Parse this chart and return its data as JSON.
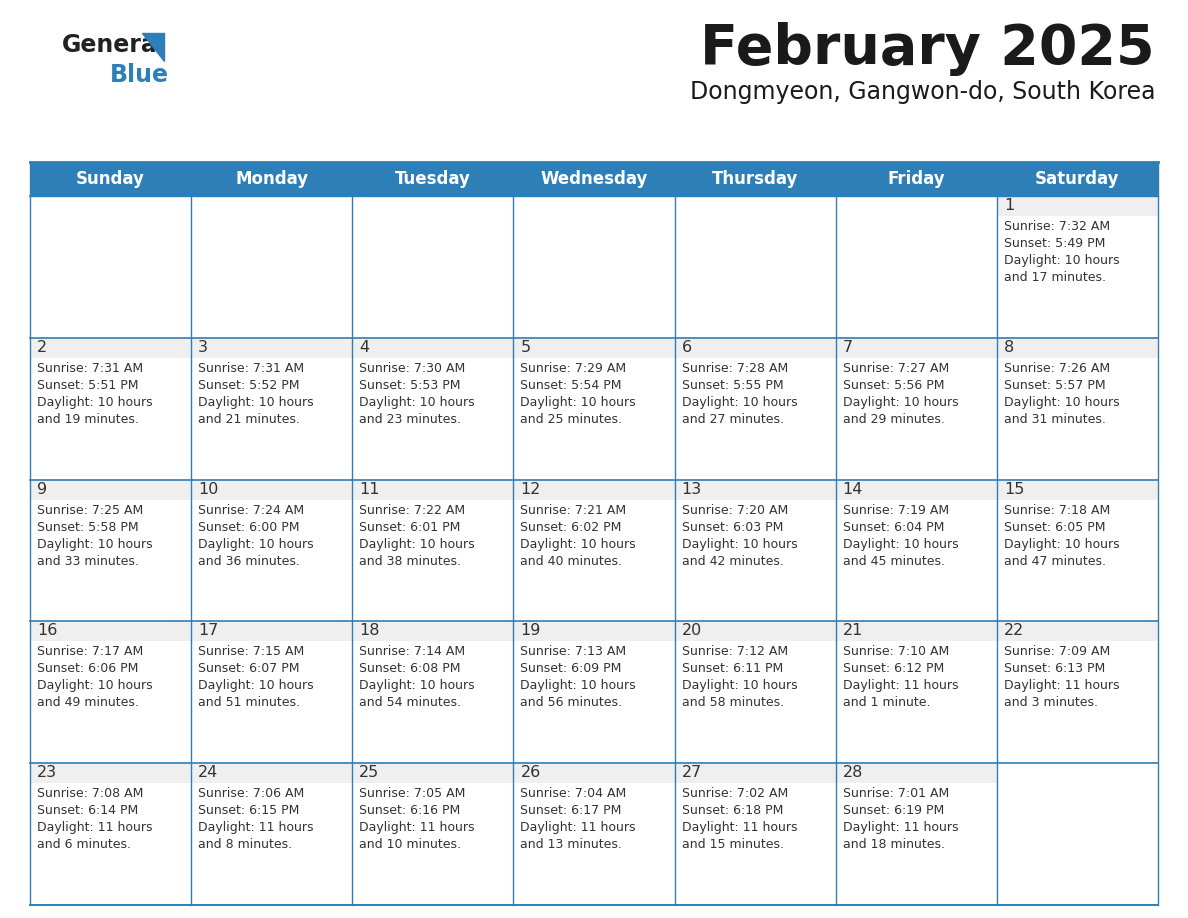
{
  "title": "February 2025",
  "subtitle": "Dongmyeon, Gangwon-do, South Korea",
  "days_of_week": [
    "Sunday",
    "Monday",
    "Tuesday",
    "Wednesday",
    "Thursday",
    "Friday",
    "Saturday"
  ],
  "header_bg": "#2E7EB8",
  "header_text": "#FFFFFF",
  "cell_bg": "#FFFFFF",
  "cell_top_bg": "#EFEFEF",
  "border_color": "#2E7EB8",
  "day_num_color": "#333333",
  "info_color": "#333333",
  "logo_general_color": "#222222",
  "logo_blue_color": "#2E7EB8",
  "calendar": [
    [
      null,
      null,
      null,
      null,
      null,
      null,
      {
        "day": "1",
        "sunrise": "7:32 AM",
        "sunset": "5:49 PM",
        "daylight": "10 hours\nand 17 minutes."
      }
    ],
    [
      {
        "day": "2",
        "sunrise": "7:31 AM",
        "sunset": "5:51 PM",
        "daylight": "10 hours\nand 19 minutes."
      },
      {
        "day": "3",
        "sunrise": "7:31 AM",
        "sunset": "5:52 PM",
        "daylight": "10 hours\nand 21 minutes."
      },
      {
        "day": "4",
        "sunrise": "7:30 AM",
        "sunset": "5:53 PM",
        "daylight": "10 hours\nand 23 minutes."
      },
      {
        "day": "5",
        "sunrise": "7:29 AM",
        "sunset": "5:54 PM",
        "daylight": "10 hours\nand 25 minutes."
      },
      {
        "day": "6",
        "sunrise": "7:28 AM",
        "sunset": "5:55 PM",
        "daylight": "10 hours\nand 27 minutes."
      },
      {
        "day": "7",
        "sunrise": "7:27 AM",
        "sunset": "5:56 PM",
        "daylight": "10 hours\nand 29 minutes."
      },
      {
        "day": "8",
        "sunrise": "7:26 AM",
        "sunset": "5:57 PM",
        "daylight": "10 hours\nand 31 minutes."
      }
    ],
    [
      {
        "day": "9",
        "sunrise": "7:25 AM",
        "sunset": "5:58 PM",
        "daylight": "10 hours\nand 33 minutes."
      },
      {
        "day": "10",
        "sunrise": "7:24 AM",
        "sunset": "6:00 PM",
        "daylight": "10 hours\nand 36 minutes."
      },
      {
        "day": "11",
        "sunrise": "7:22 AM",
        "sunset": "6:01 PM",
        "daylight": "10 hours\nand 38 minutes."
      },
      {
        "day": "12",
        "sunrise": "7:21 AM",
        "sunset": "6:02 PM",
        "daylight": "10 hours\nand 40 minutes."
      },
      {
        "day": "13",
        "sunrise": "7:20 AM",
        "sunset": "6:03 PM",
        "daylight": "10 hours\nand 42 minutes."
      },
      {
        "day": "14",
        "sunrise": "7:19 AM",
        "sunset": "6:04 PM",
        "daylight": "10 hours\nand 45 minutes."
      },
      {
        "day": "15",
        "sunrise": "7:18 AM",
        "sunset": "6:05 PM",
        "daylight": "10 hours\nand 47 minutes."
      }
    ],
    [
      {
        "day": "16",
        "sunrise": "7:17 AM",
        "sunset": "6:06 PM",
        "daylight": "10 hours\nand 49 minutes."
      },
      {
        "day": "17",
        "sunrise": "7:15 AM",
        "sunset": "6:07 PM",
        "daylight": "10 hours\nand 51 minutes."
      },
      {
        "day": "18",
        "sunrise": "7:14 AM",
        "sunset": "6:08 PM",
        "daylight": "10 hours\nand 54 minutes."
      },
      {
        "day": "19",
        "sunrise": "7:13 AM",
        "sunset": "6:09 PM",
        "daylight": "10 hours\nand 56 minutes."
      },
      {
        "day": "20",
        "sunrise": "7:12 AM",
        "sunset": "6:11 PM",
        "daylight": "10 hours\nand 58 minutes."
      },
      {
        "day": "21",
        "sunrise": "7:10 AM",
        "sunset": "6:12 PM",
        "daylight": "11 hours\nand 1 minute."
      },
      {
        "day": "22",
        "sunrise": "7:09 AM",
        "sunset": "6:13 PM",
        "daylight": "11 hours\nand 3 minutes."
      }
    ],
    [
      {
        "day": "23",
        "sunrise": "7:08 AM",
        "sunset": "6:14 PM",
        "daylight": "11 hours\nand 6 minutes."
      },
      {
        "day": "24",
        "sunrise": "7:06 AM",
        "sunset": "6:15 PM",
        "daylight": "11 hours\nand 8 minutes."
      },
      {
        "day": "25",
        "sunrise": "7:05 AM",
        "sunset": "6:16 PM",
        "daylight": "11 hours\nand 10 minutes."
      },
      {
        "day": "26",
        "sunrise": "7:04 AM",
        "sunset": "6:17 PM",
        "daylight": "11 hours\nand 13 minutes."
      },
      {
        "day": "27",
        "sunrise": "7:02 AM",
        "sunset": "6:18 PM",
        "daylight": "11 hours\nand 15 minutes."
      },
      {
        "day": "28",
        "sunrise": "7:01 AM",
        "sunset": "6:19 PM",
        "daylight": "11 hours\nand 18 minutes."
      },
      null
    ]
  ]
}
